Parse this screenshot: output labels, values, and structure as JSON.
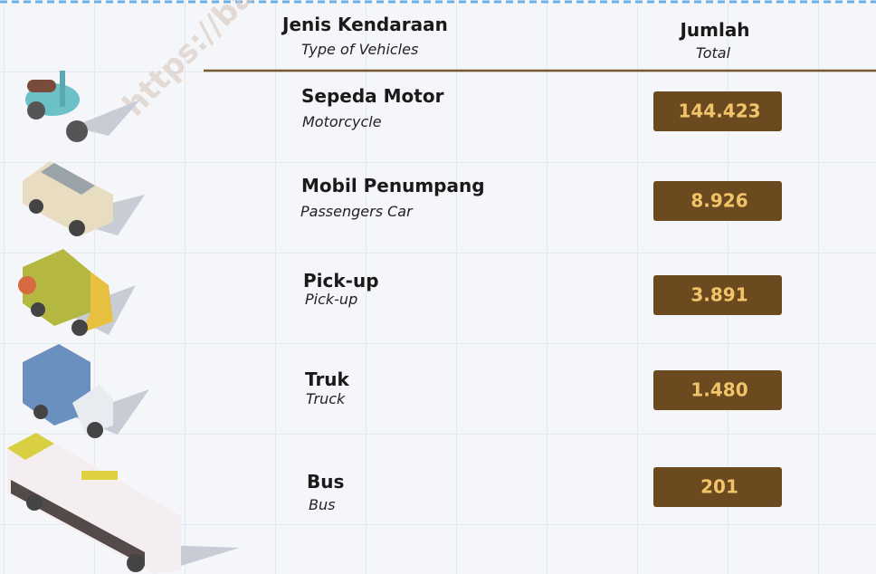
{
  "header": {
    "type_title": "Jenis Kendaraan",
    "type_subtitle": "Type of Vehicles",
    "total_title": "Jumlah",
    "total_subtitle": "Total"
  },
  "watermark": "https://bangka",
  "rows": [
    {
      "name": "Sepeda Motor",
      "name_en": "Motorcycle",
      "total": "144.423"
    },
    {
      "name": "Mobil Penumpang",
      "name_en": "Passengers Car",
      "total": "8.926"
    },
    {
      "name": "Pick-up",
      "name_en": "Pick-up",
      "total": "3.891"
    },
    {
      "name": "Truk",
      "name_en": "Truck",
      "total": "1.480"
    },
    {
      "name": "Bus",
      "name_en": "Bus",
      "total": "201"
    }
  ]
}
